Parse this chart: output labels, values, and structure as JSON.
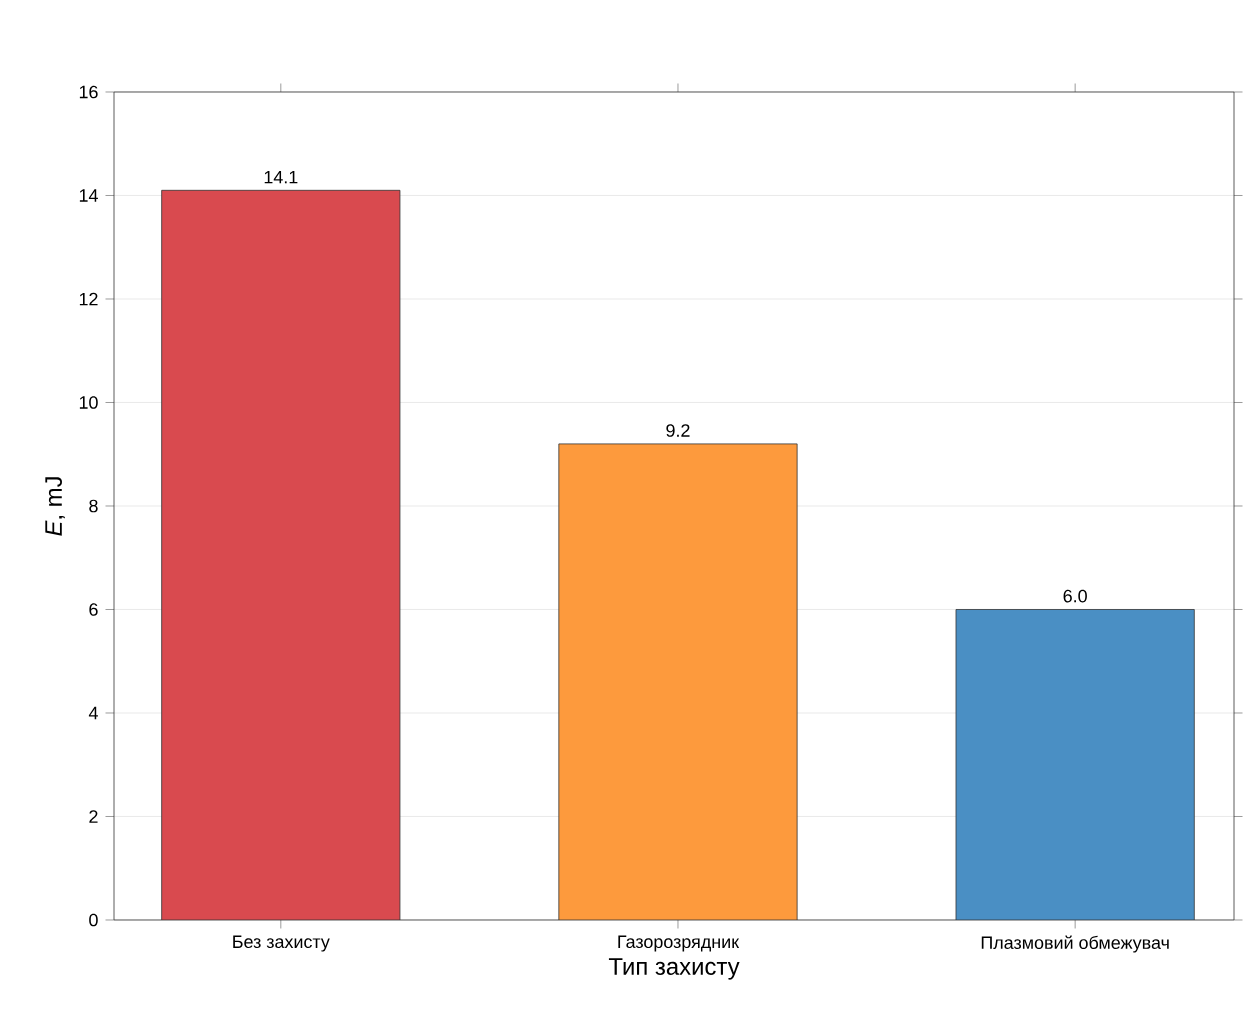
{
  "chart_data": {
    "type": "bar",
    "xlabel": "Тип захисту",
    "ylabel": "*E*, mJ",
    "categories": [
      "Без захисту",
      "Газорозрядник",
      "Плазмовий обмежувач"
    ],
    "values": [
      14.1,
      9.2,
      6.0
    ],
    "colors": [
      "#d94a4f",
      "#fd9a3d",
      "#4a8fc4"
    ],
    "value_labels": [
      "14.1",
      "9.2",
      "6.0"
    ],
    "ylim": [
      0,
      16
    ],
    "yticks": [
      0,
      2,
      4,
      6,
      8,
      10,
      12,
      14,
      16
    ],
    "grid": "y"
  }
}
